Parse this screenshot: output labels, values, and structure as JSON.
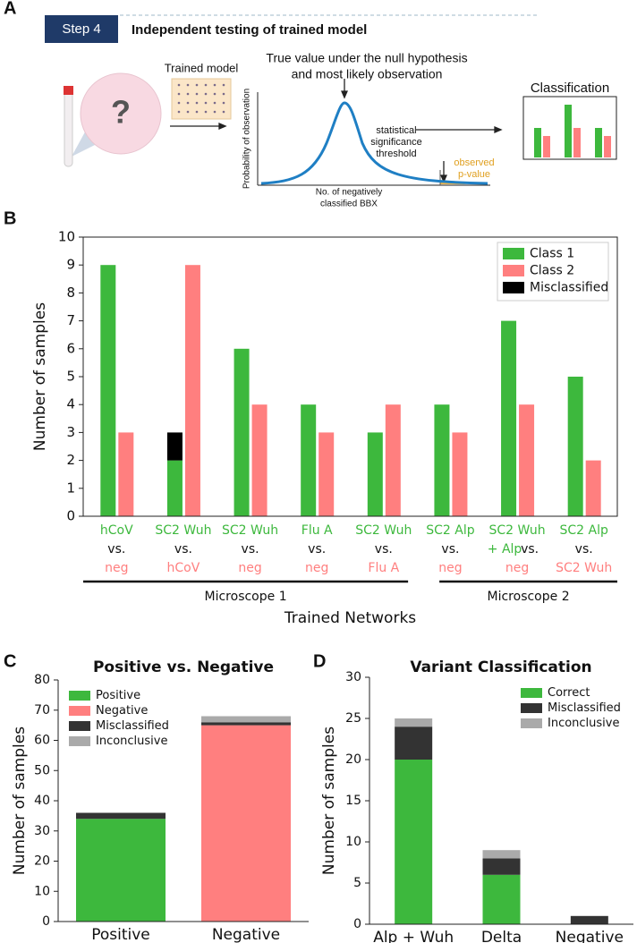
{
  "diagram": {
    "panel_label": "A",
    "step": "Step 4",
    "heading": "Independent testing of trained model",
    "trained_model": "Trained model",
    "unknown": "?",
    "curve_note": [
      "True value under the null hypothesis",
      "and most likely observation"
    ],
    "y_axis": "Probability of observation",
    "x_axis": [
      "No. of negatively",
      "classified BBX"
    ],
    "threshold": [
      "statistical",
      "significance",
      "threshold"
    ],
    "p_value": [
      "observed",
      "p-value"
    ],
    "output": "Classification"
  },
  "chart_data": [
    {
      "panel_label": "B",
      "type": "bar",
      "ylabel": "Number of samples",
      "xlabel": "Trained Networks",
      "separator": "vs.",
      "categories": [
        {
          "class1": [
            "hCoV"
          ],
          "class2": "neg"
        },
        {
          "class1": [
            "SC2 Wuh"
          ],
          "class2": "hCoV"
        },
        {
          "class1": [
            "SC2 Wuh"
          ],
          "class2": "neg"
        },
        {
          "class1": [
            "Flu A"
          ],
          "class2": "neg"
        },
        {
          "class1": [
            "SC2 Wuh"
          ],
          "class2": "Flu A"
        },
        {
          "class1": [
            "SC2 Alp"
          ],
          "class2": "neg"
        },
        {
          "class1": [
            "SC2 Wuh",
            "+ Alp"
          ],
          "class2": "neg"
        },
        {
          "class1": [
            "SC2 Alp"
          ],
          "class2": "SC2 Wuh"
        }
      ],
      "groups": [
        "Microscope 1",
        "Microscope 2"
      ],
      "series": [
        {
          "name": "Class 1",
          "color": "#3db83d",
          "values": [
            9,
            2,
            6,
            4,
            3,
            4,
            7,
            5
          ]
        },
        {
          "name": "Class 2",
          "color": "#ff7f7f",
          "values": [
            3,
            9,
            4,
            3,
            4,
            3,
            4,
            2
          ]
        },
        {
          "name": "Misclassified",
          "color": "#000000",
          "values": [
            null,
            1,
            null,
            null,
            null,
            null,
            null,
            null
          ]
        }
      ],
      "ylim": [
        0,
        10
      ],
      "yticks": [
        0,
        1,
        2,
        3,
        4,
        5,
        6,
        7,
        8,
        9,
        10
      ],
      "legend": "upper right"
    },
    {
      "panel_label": "C",
      "type": "stacked_bar",
      "title": "Positive vs. Negative",
      "ylabel": "Number of samples",
      "categories": [
        "Positive",
        "Negative"
      ],
      "series": [
        {
          "name": "Positive",
          "color": "#3db83d",
          "values": [
            34,
            null
          ]
        },
        {
          "name": "Negative",
          "color": "#ff7f7f",
          "values": [
            null,
            65
          ]
        },
        {
          "name": "Misclassified",
          "color": "#333333",
          "values": [
            2,
            1
          ]
        },
        {
          "name": "Inconclusive",
          "color": "#aaaaaa",
          "values": [
            null,
            2
          ]
        }
      ],
      "ylim": [
        0,
        80
      ],
      "yticks": [
        0,
        10,
        20,
        30,
        40,
        50,
        60,
        70,
        80
      ],
      "legend": "upper left"
    },
    {
      "panel_label": "D",
      "type": "stacked_bar",
      "title": "Variant Classification",
      "ylabel": "Number of samples",
      "categories": [
        "Alp + Wuh",
        "Delta",
        "Negative"
      ],
      "series": [
        {
          "name": "Correct",
          "color": "#3db83d",
          "values": [
            20,
            6,
            null
          ]
        },
        {
          "name": "Misclassified",
          "color": "#333333",
          "values": [
            4,
            2,
            1
          ]
        },
        {
          "name": "Inconclusive",
          "color": "#aaaaaa",
          "values": [
            1,
            1,
            null
          ]
        }
      ],
      "ylim": [
        0,
        30
      ],
      "yticks": [
        0,
        5,
        10,
        15,
        20,
        25,
        30
      ],
      "legend": "upper right"
    }
  ]
}
